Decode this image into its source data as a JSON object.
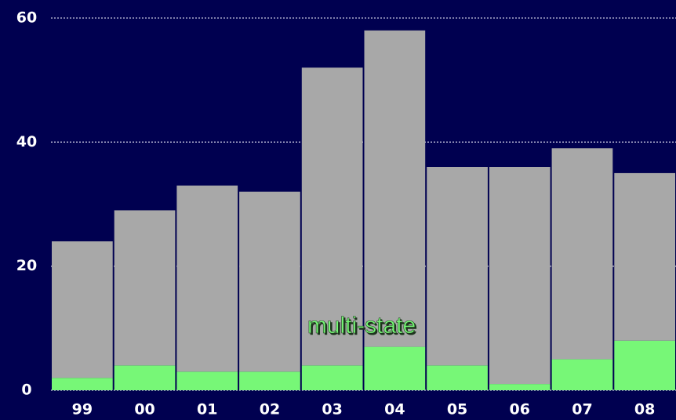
{
  "chart_data": {
    "type": "stacked_bar",
    "categories": [
      "99",
      "00",
      "01",
      "02",
      "03",
      "04",
      "05",
      "06",
      "07",
      "08"
    ],
    "series": [
      {
        "name": "multi-state",
        "color": "#77f777",
        "values": [
          2,
          4,
          3,
          3,
          4,
          7,
          4,
          1,
          5,
          8
        ]
      },
      {
        "color": "#a8a8a8",
        "values": [
          22,
          25,
          30,
          29,
          48,
          51,
          32,
          35,
          34,
          27
        ]
      }
    ],
    "ylim": [
      0,
      60
    ],
    "yticks": [
      0,
      20,
      40,
      60
    ],
    "grid": true
  }
}
